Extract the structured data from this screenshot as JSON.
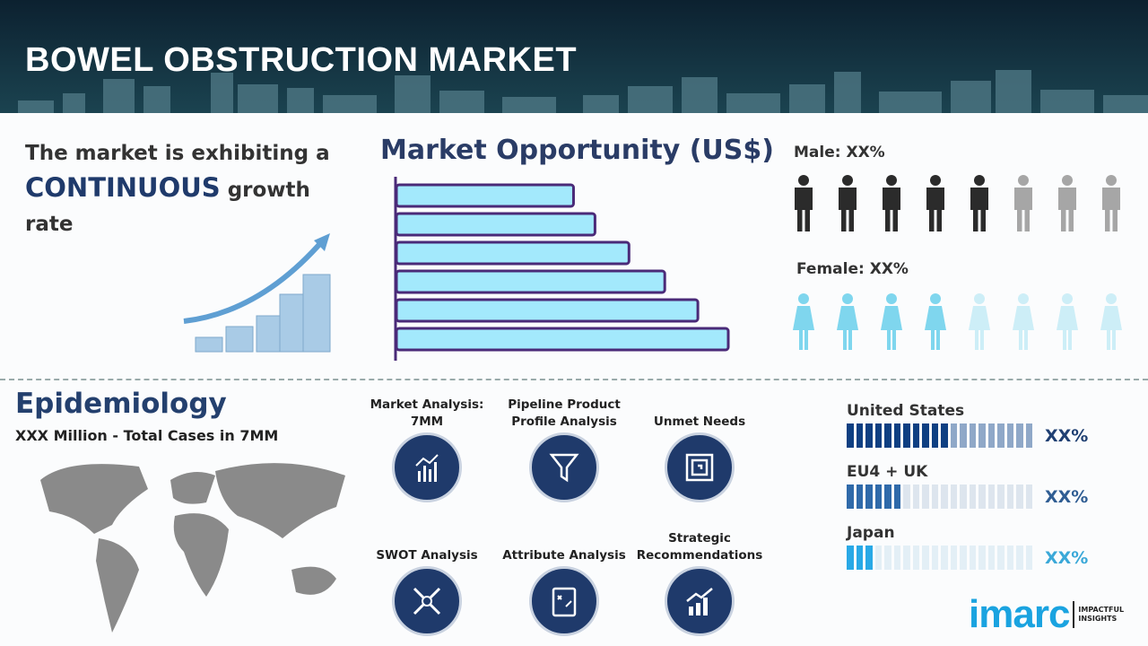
{
  "header": {
    "title": "BOWEL OBSTRUCTION MARKET"
  },
  "growth": {
    "line1": "The market is exhibiting a",
    "highlight": "CONTINUOUS",
    "line2": "growth",
    "line3": "rate"
  },
  "market_opportunity": {
    "title": "Market Opportunity (US$)",
    "bar_relative_values": [
      198,
      222,
      260,
      300,
      337,
      371
    ],
    "bar_fill": "#a3e9fc",
    "bar_stroke": "#4a2a78"
  },
  "gender": {
    "male_label": "Male: XX%",
    "male_filled": 5,
    "male_total": 8,
    "female_label": "Female: XX%",
    "female_filled": 4,
    "female_total": 8,
    "male_color": "#2b2b2b",
    "male_dim": "#a6a6a6",
    "female_color": "#7fd6ee",
    "female_dim": "#cdeef7"
  },
  "epidemiology": {
    "title": "Epidemiology",
    "subtitle": "XXX Million  - Total Cases in 7MM"
  },
  "analyses": [
    {
      "label": "Market Analysis: 7MM",
      "icon": "chart-analysis-icon"
    },
    {
      "label": "Pipeline Product Profile Analysis",
      "icon": "funnel-icon"
    },
    {
      "label": "Unmet Needs",
      "icon": "maze-icon"
    },
    {
      "label": "SWOT Analysis",
      "icon": "swot-arrows-icon"
    },
    {
      "label": "Attribute Analysis",
      "icon": "clipboard-strategy-icon"
    },
    {
      "label": "Strategic Recommendations",
      "icon": "growth-bars-icon"
    }
  ],
  "regions": [
    {
      "name": "United States",
      "value": "XX%",
      "filled": 11,
      "total": 20,
      "color": "#0e3f82",
      "dim": "#8fa8c8",
      "text_color": "#1f3f72"
    },
    {
      "name": "EU4 + UK",
      "value": "XX%",
      "filled": 6,
      "total": 20,
      "color": "#2f6aaa",
      "dim": "#dde5ee",
      "text_color": "#2f5d93"
    },
    {
      "name": "Japan",
      "value": "XX%",
      "filled": 3,
      "total": 20,
      "color": "#29a9e6",
      "dim": "#e3eff6",
      "text_color": "#3aa8d8"
    }
  ],
  "logo": {
    "brand": "imarc",
    "tagline1": "IMPACTFUL",
    "tagline2": "INSIGHTS",
    "color": "#1aa3e0"
  }
}
